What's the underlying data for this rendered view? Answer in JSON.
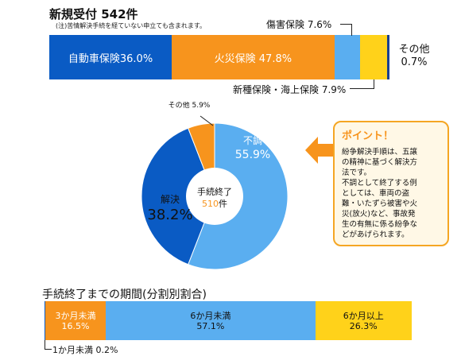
{
  "chart_data": [
    {
      "type": "bar",
      "orientation": "horizontal-stacked-100",
      "title": "新規受付 542件",
      "note": "(注)苦情解決手続を経ていない申立ても含まれます。",
      "series": [
        {
          "name": "自動車保険",
          "value": 36.0,
          "label": "自動車保険36.0%",
          "color": "#0a5bc4"
        },
        {
          "name": "火災保険",
          "value": 47.8,
          "label": "火災保険 47.8%",
          "color": "#f7941d"
        },
        {
          "name": "傷害保険",
          "value": 7.6,
          "label": "傷害保険 7.6%",
          "color": "#5aaef0"
        },
        {
          "name": "新種保険・海上保険",
          "value": 7.9,
          "label": "新種保険・海上保険 7.9%",
          "color": "#ffd21a"
        },
        {
          "name": "その他",
          "value": 0.7,
          "label_line1": "その他",
          "label_line2": "0.7%",
          "color": "#1a3f8f"
        }
      ]
    },
    {
      "type": "pie",
      "variant": "donut",
      "center_line1": "手続終了",
      "center_value": "510",
      "center_unit": "件",
      "slices": [
        {
          "name": "不調",
          "value": 55.9,
          "label_line1": "不調",
          "label_line2": "55.9%",
          "color": "#5aaef0"
        },
        {
          "name": "解決",
          "value": 38.2,
          "label_line1": "解決",
          "label_line2": "38.2%",
          "color": "#0a5bc4"
        },
        {
          "name": "その他",
          "value": 5.9,
          "label": "その他 5.9%",
          "color": "#f7941d"
        }
      ]
    },
    {
      "type": "bar",
      "orientation": "horizontal-stacked-100",
      "title": "手続終了までの期間(分割別割合)",
      "series": [
        {
          "name": "1か月未満",
          "value": 0.2,
          "label": "1か月未満 0.2%",
          "color": "#0a5bc4"
        },
        {
          "name": "3か月未満",
          "value": 16.5,
          "label_line1": "3か月未満",
          "label_line2": "16.5%",
          "color": "#f7941d"
        },
        {
          "name": "6か月未満",
          "value": 57.1,
          "label_line1": "6か月未満",
          "label_line2": "57.1%",
          "color": "#5aaef0"
        },
        {
          "name": "6か月以上",
          "value": 26.3,
          "label_line1": "6か月以上",
          "label_line2": "26.3%",
          "color": "#ffd21a"
        }
      ]
    }
  ],
  "point": {
    "title": "ポイント！",
    "lines": [
      "紛争解決手順は、五譲",
      "の精神に基づく解決方",
      "法です。",
      "不調として終了する例",
      "としては、車両の盗",
      "難・いたずら被害や火",
      "災(放火)など、事故発",
      "生の有無に係る紛争な",
      "どがあげられます。"
    ],
    "accent_color": "#f7941d"
  }
}
